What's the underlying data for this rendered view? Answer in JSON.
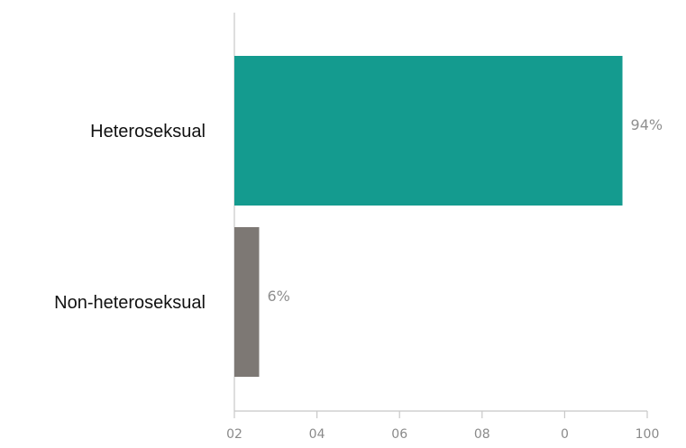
{
  "chart_data": {
    "type": "bar",
    "orientation": "horizontal",
    "categories": [
      "Heteroseksual",
      "Non-heteroseksual"
    ],
    "values": [
      94,
      6
    ],
    "value_labels": [
      "94%",
      "6%"
    ],
    "xlim": [
      0,
      100
    ],
    "x_ticks": [
      0,
      20,
      40,
      60,
      80,
      100
    ],
    "x_tick_labels": [
      "02",
      "04",
      "06",
      "08",
      "0",
      "100"
    ],
    "grid": false,
    "colors": [
      "#149b8f",
      "#7d7874"
    ]
  }
}
